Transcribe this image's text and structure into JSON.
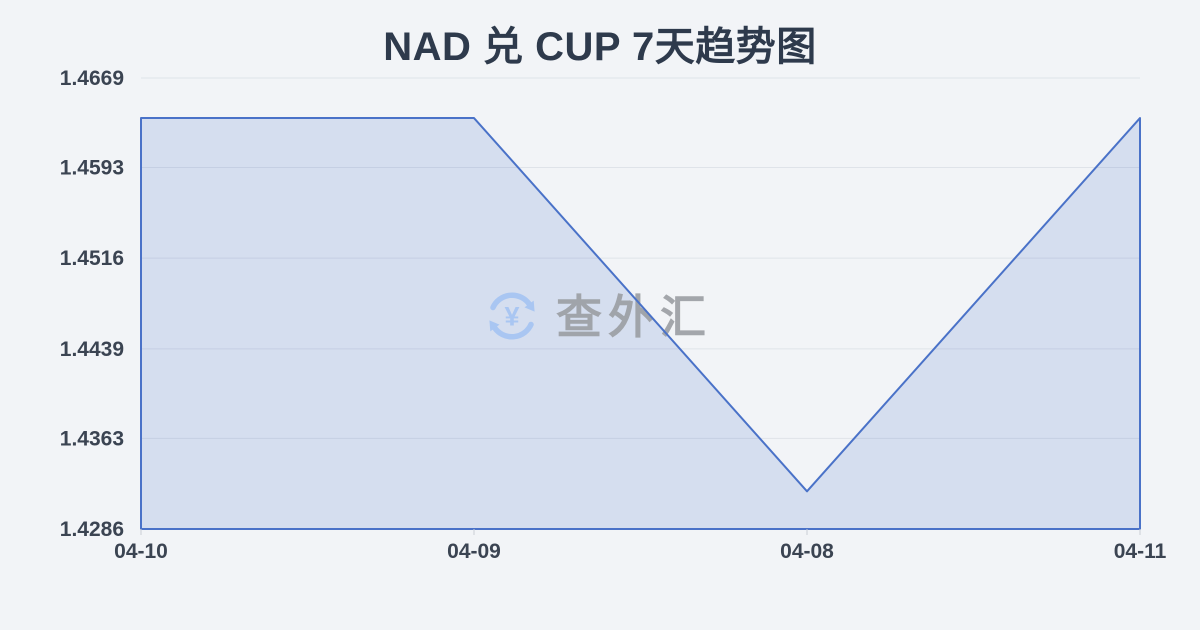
{
  "header": {
    "title": "NAD 兑 CUP 7天趋势图"
  },
  "watermark": {
    "text": "查外汇",
    "icon": "currency-exchange-icon",
    "icon_symbol": "¥",
    "icon_color": "#a9c6f2",
    "text_color": "#9b9ea3"
  },
  "chart_data": {
    "type": "area",
    "title": "NAD 兑 CUP 7天趋势图",
    "x": [
      "04-10",
      "04-09",
      "04-08",
      "04-11"
    ],
    "values": [
      1.4635,
      1.4635,
      1.4318,
      1.4635
    ],
    "y_ticks": [
      "1.4669",
      "1.4593",
      "1.4516",
      "1.4439",
      "1.4363",
      "1.4286"
    ],
    "ylim": [
      1.4286,
      1.4669
    ],
    "xlabel": "",
    "ylabel": "",
    "grid": true,
    "legend": false,
    "line_color": "#4a72c8",
    "fill_color": "rgba(74,114,200,0.17)",
    "gridline_color": "#dfe3e9",
    "tick_mark_color": "#c9ced6",
    "axis_label_color": "#3b4452",
    "background_color": "#f2f4f7"
  }
}
